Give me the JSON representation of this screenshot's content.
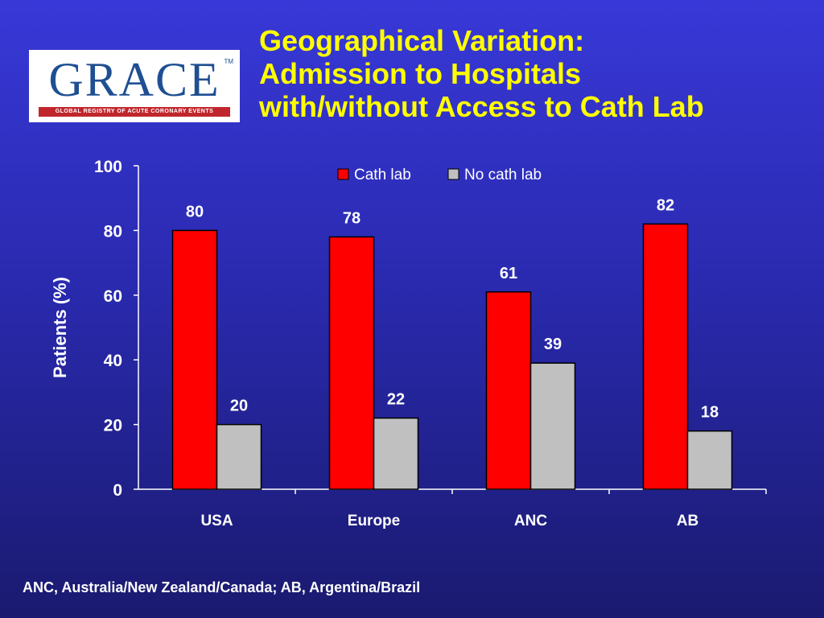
{
  "header": {
    "logo_text": "GRACE",
    "logo_tagline": "GLOBAL REGISTRY OF ACUTE CORONARY EVENTS",
    "logo_tm": "TM",
    "title_lines": [
      "Geographical Variation:",
      "Admission to Hospitals",
      "with/without Access to Cath Lab"
    ]
  },
  "colors": {
    "cath_lab": "#ff0000",
    "no_cath_lab": "#c0c0c0",
    "text": "#ffffff",
    "title": "#ffff00"
  },
  "chart_data": {
    "type": "bar",
    "categories": [
      "USA",
      "Europe",
      "ANC",
      "AB"
    ],
    "series": [
      {
        "name": "Cath lab",
        "values": [
          80,
          78,
          61,
          82
        ]
      },
      {
        "name": "No cath lab",
        "values": [
          20,
          22,
          39,
          18
        ]
      }
    ],
    "ylabel": "Patients (%)",
    "ylim": [
      0,
      100
    ],
    "yticks": [
      0,
      20,
      40,
      60,
      80,
      100
    ],
    "legend": "top",
    "grid": false
  },
  "footnote": "ANC, Australia/New Zealand/Canada; AB, Argentina/Brazil"
}
